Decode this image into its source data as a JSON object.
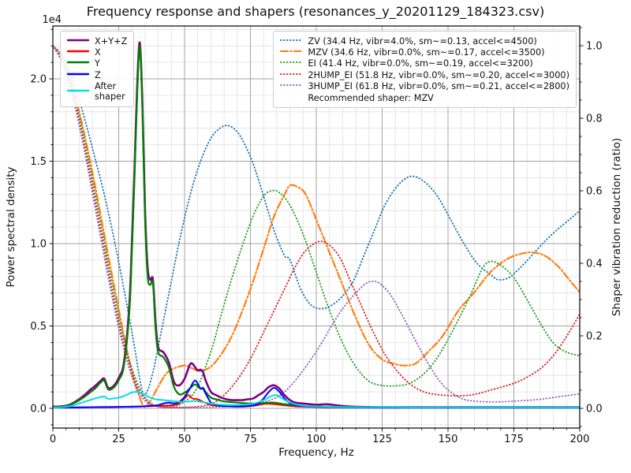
{
  "title": "Frequency response and shapers (resonances_y_20201129_184323.csv)",
  "axes": {
    "x": {
      "label": "Frequency, Hz",
      "min": 0,
      "max": 200,
      "major_ticks": [
        0,
        25,
        50,
        75,
        100,
        125,
        150,
        175,
        200
      ],
      "minor_step": 5
    },
    "y_left": {
      "label": "Power spectral density",
      "offset_text": "1e4",
      "major_ticks": [
        0.0,
        0.5,
        1.0,
        1.5,
        2.0
      ],
      "minor_step": 0.1,
      "scale": 10000
    },
    "y_right": {
      "label": "Shaper vibration reduction (ratio)",
      "major_ticks": [
        0.0,
        0.2,
        0.4,
        0.6,
        0.8,
        1.0
      ],
      "minor_step": 0.05
    }
  },
  "legend_psd": {
    "items": [
      {
        "label": "X+Y+Z",
        "color": "#800080",
        "style": "solid"
      },
      {
        "label": "X",
        "color": "#ff0000",
        "style": "solid"
      },
      {
        "label": "Y",
        "color": "#008000",
        "style": "solid"
      },
      {
        "label": "Z",
        "color": "#0000ff",
        "style": "solid"
      },
      {
        "label": "After\nshaper",
        "color": "#00e0e0",
        "style": "solid"
      }
    ]
  },
  "legend_shapers": {
    "items": [
      {
        "label": "ZV (34.4 Hz, vibr=4.0%, sm~=0.13, accel<=4500)",
        "color": "#1f77b4",
        "style": "dotted"
      },
      {
        "label": "MZV (34.6 Hz, vibr=0.0%, sm~=0.17, accel<=3500)",
        "color": "#ff7f0e",
        "style": "dashdot"
      },
      {
        "label": "EI (41.4 Hz, vibr=0.0%, sm~=0.19, accel<=3200)",
        "color": "#2ca02c",
        "style": "dotted"
      },
      {
        "label": "2HUMP_EI (51.8 Hz, vibr=0.0%, sm~=0.20, accel<=3000)",
        "color": "#d62728",
        "style": "dotted"
      },
      {
        "label": "3HUMP_EI (61.8 Hz, vibr=0.0%, sm~=0.21, accel<=2800)",
        "color": "#9467bd",
        "style": "dotted"
      },
      {
        "label": "Recommended shaper: MZV",
        "color": null,
        "style": "none"
      }
    ]
  },
  "chart_data": {
    "type": "line",
    "title": "Frequency response and shapers (resonances_y_20201129_184323.csv)",
    "xlabel": "Frequency, Hz",
    "ylabel_left": "Power spectral density",
    "ylabel_right": "Shaper vibration reduction (ratio)",
    "x_range": [
      0,
      200
    ],
    "y_left_range_1e4": [
      0,
      2.32
    ],
    "y_right_range": [
      0,
      1.0
    ],
    "grid": "both",
    "recommended_shaper": "MZV",
    "psd_series": [
      {
        "name": "X+Y+Z",
        "color": "#800080",
        "width": 2.6,
        "axis": "left",
        "unit": "1e4",
        "x": [
          0,
          3,
          6,
          9,
          12,
          14,
          16,
          18,
          19.5,
          21,
          23,
          25,
          27,
          29,
          30,
          31,
          32,
          33,
          34,
          35,
          36,
          37,
          38,
          39,
          40,
          42,
          44,
          46,
          48,
          50,
          52,
          53,
          54,
          55,
          56,
          57,
          58,
          60,
          62,
          64,
          66,
          68,
          70,
          72,
          74,
          76,
          78,
          80,
          82,
          84,
          86,
          88,
          90,
          92,
          96,
          100,
          104,
          108,
          112,
          120,
          130,
          140,
          160,
          180,
          200
        ],
        "y": [
          0.01,
          0.012,
          0.02,
          0.045,
          0.08,
          0.11,
          0.135,
          0.165,
          0.18,
          0.125,
          0.135,
          0.185,
          0.28,
          0.62,
          1.0,
          1.45,
          1.95,
          2.22,
          1.85,
          1.2,
          0.85,
          0.78,
          0.78,
          0.52,
          0.37,
          0.34,
          0.28,
          0.16,
          0.14,
          0.18,
          0.265,
          0.27,
          0.25,
          0.23,
          0.235,
          0.22,
          0.17,
          0.1,
          0.08,
          0.065,
          0.055,
          0.05,
          0.05,
          0.05,
          0.055,
          0.06,
          0.08,
          0.1,
          0.13,
          0.14,
          0.12,
          0.08,
          0.05,
          0.035,
          0.028,
          0.022,
          0.025,
          0.018,
          0.012,
          0.008,
          0.007,
          0.007,
          0.007,
          0.007,
          0.007
        ]
      },
      {
        "name": "X",
        "color": "#ff0000",
        "width": 2,
        "axis": "left",
        "unit": "1e4",
        "x": [
          0,
          10,
          20,
          30,
          35,
          40,
          44,
          46,
          48,
          50,
          51.5,
          53,
          55,
          57,
          60,
          63,
          66,
          70,
          74,
          78,
          81,
          84,
          88,
          92,
          96,
          100,
          110,
          120,
          140,
          160,
          180,
          200
        ],
        "y": [
          0.005,
          0.006,
          0.008,
          0.01,
          0.012,
          0.015,
          0.018,
          0.02,
          0.03,
          0.06,
          0.08,
          0.06,
          0.055,
          0.04,
          0.02,
          0.015,
          0.012,
          0.01,
          0.012,
          0.02,
          0.028,
          0.025,
          0.018,
          0.012,
          0.01,
          0.008,
          0.006,
          0.005,
          0.004,
          0.004,
          0.004,
          0.004
        ]
      },
      {
        "name": "Y",
        "color": "#008000",
        "width": 2.2,
        "axis": "left",
        "unit": "1e4",
        "x": [
          0,
          3,
          6,
          9,
          12,
          14,
          16,
          18,
          19.5,
          21,
          23,
          25,
          27,
          29,
          30,
          31,
          32,
          33,
          34,
          35,
          36,
          37,
          38,
          39,
          40,
          42,
          44,
          46,
          48,
          50,
          52,
          54,
          56,
          57,
          58,
          60,
          62,
          64,
          66,
          70,
          74,
          78,
          82,
          84,
          86,
          88,
          92,
          96,
          100,
          110,
          120,
          140,
          160,
          180,
          200
        ],
        "y": [
          0.008,
          0.01,
          0.018,
          0.04,
          0.07,
          0.095,
          0.12,
          0.155,
          0.168,
          0.115,
          0.125,
          0.17,
          0.26,
          0.58,
          0.95,
          1.4,
          1.9,
          2.2,
          1.82,
          1.15,
          0.8,
          0.75,
          0.76,
          0.48,
          0.34,
          0.31,
          0.25,
          0.13,
          0.085,
          0.095,
          0.12,
          0.145,
          0.12,
          0.125,
          0.1,
          0.065,
          0.055,
          0.045,
          0.04,
          0.035,
          0.03,
          0.03,
          0.035,
          0.035,
          0.03,
          0.025,
          0.018,
          0.014,
          0.012,
          0.008,
          0.006,
          0.005,
          0.005,
          0.005,
          0.005
        ]
      },
      {
        "name": "Z",
        "color": "#0000ff",
        "width": 2,
        "axis": "left",
        "unit": "1e4",
        "x": [
          0,
          10,
          20,
          30,
          36,
          40,
          42,
          44,
          46,
          48,
          50,
          52,
          53,
          54,
          55,
          56,
          57,
          58,
          60,
          62,
          64,
          68,
          72,
          76,
          78,
          80,
          82,
          84,
          86,
          88,
          90,
          92,
          96,
          100,
          110,
          120,
          140,
          160,
          180,
          200
        ],
        "y": [
          0.005,
          0.006,
          0.008,
          0.01,
          0.014,
          0.02,
          0.03,
          0.035,
          0.03,
          0.04,
          0.07,
          0.12,
          0.15,
          0.17,
          0.15,
          0.12,
          0.12,
          0.09,
          0.035,
          0.02,
          0.015,
          0.012,
          0.012,
          0.018,
          0.03,
          0.06,
          0.1,
          0.125,
          0.1,
          0.06,
          0.03,
          0.02,
          0.012,
          0.01,
          0.006,
          0.005,
          0.004,
          0.004,
          0.004,
          0.004
        ]
      },
      {
        "name": "After shaper",
        "color": "#00e0e0",
        "width": 2,
        "axis": "left",
        "unit": "1e4",
        "x": [
          0,
          4,
          7,
          10,
          13,
          16,
          18,
          19.5,
          21,
          23,
          25,
          27,
          29,
          31,
          33,
          35,
          37,
          39,
          42,
          45,
          48,
          50,
          52,
          54,
          56,
          58,
          60,
          64,
          68,
          72,
          76,
          80,
          83,
          85,
          87,
          90,
          93,
          96,
          100,
          110,
          120,
          140,
          160,
          180,
          200
        ],
        "y": [
          0.005,
          0.008,
          0.015,
          0.03,
          0.045,
          0.06,
          0.068,
          0.072,
          0.058,
          0.06,
          0.065,
          0.075,
          0.09,
          0.1,
          0.095,
          0.08,
          0.065,
          0.055,
          0.05,
          0.045,
          0.04,
          0.04,
          0.042,
          0.045,
          0.04,
          0.035,
          0.03,
          0.022,
          0.02,
          0.022,
          0.028,
          0.05,
          0.075,
          0.08,
          0.06,
          0.035,
          0.022,
          0.015,
          0.012,
          0.008,
          0.007,
          0.006,
          0.006,
          0.006,
          0.006
        ]
      }
    ],
    "shaper_series": [
      {
        "name": "ZV",
        "color": "#1f77b4",
        "style": "dotted",
        "axis": "right",
        "x": [
          0,
          4,
          8,
          12,
          16,
          20,
          24,
          28,
          31,
          33,
          34.4,
          36,
          38,
          40,
          44,
          48,
          52,
          56,
          60,
          63,
          66,
          69,
          72,
          76,
          80,
          84,
          88,
          90,
          94,
          98,
          102,
          106,
          110,
          114,
          118,
          122,
          126,
          131,
          136,
          141,
          146,
          151,
          156,
          161,
          166,
          169,
          173,
          177,
          181,
          186,
          191,
          196,
          200
        ],
        "y": [
          1.0,
          0.97,
          0.9,
          0.8,
          0.69,
          0.575,
          0.44,
          0.29,
          0.17,
          0.08,
          0.04,
          0.05,
          0.1,
          0.17,
          0.315,
          0.46,
          0.585,
          0.68,
          0.745,
          0.77,
          0.78,
          0.77,
          0.74,
          0.675,
          0.585,
          0.49,
          0.42,
          0.41,
          0.33,
          0.285,
          0.275,
          0.285,
          0.31,
          0.35,
          0.42,
          0.49,
          0.56,
          0.615,
          0.64,
          0.625,
          0.585,
          0.52,
          0.455,
          0.4,
          0.37,
          0.355,
          0.36,
          0.385,
          0.415,
          0.455,
          0.49,
          0.52,
          0.545
        ]
      },
      {
        "name": "MZV",
        "color": "#ff7f0e",
        "style": "dashdot",
        "axis": "right",
        "x": [
          0,
          4,
          8,
          12,
          16,
          20,
          24,
          27,
          30,
          32,
          34.6,
          37,
          40,
          43,
          46,
          50,
          53,
          56,
          60,
          64,
          68,
          72,
          76,
          80,
          84,
          88,
          90,
          93,
          96,
          100,
          105,
          110,
          115,
          120,
          125,
          130,
          134,
          138,
          143,
          148,
          154,
          160,
          166,
          172,
          177,
          182,
          187,
          192,
          196,
          200
        ],
        "y": [
          1.0,
          0.96,
          0.875,
          0.755,
          0.615,
          0.46,
          0.31,
          0.2,
          0.1,
          0.05,
          0.005,
          0.02,
          0.06,
          0.095,
          0.11,
          0.118,
          0.11,
          0.103,
          0.115,
          0.15,
          0.2,
          0.27,
          0.35,
          0.44,
          0.53,
          0.59,
          0.615,
          0.61,
          0.59,
          0.52,
          0.43,
          0.34,
          0.25,
          0.175,
          0.135,
          0.122,
          0.118,
          0.125,
          0.16,
          0.2,
          0.27,
          0.32,
          0.375,
          0.41,
          0.425,
          0.43,
          0.42,
          0.39,
          0.355,
          0.32
        ]
      },
      {
        "name": "EI",
        "color": "#2ca02c",
        "style": "dotted",
        "axis": "right",
        "x": [
          0,
          4,
          8,
          12,
          16,
          20,
          24,
          28,
          31,
          34,
          37,
          40,
          44,
          48,
          52,
          55,
          58,
          61,
          64,
          68,
          72,
          76,
          80,
          83,
          86,
          90,
          95,
          100,
          105,
          110,
          115,
          120,
          125,
          130,
          135,
          140,
          145,
          150,
          155,
          159,
          163,
          166,
          170,
          175,
          180,
          185,
          190,
          195,
          200
        ],
        "y": [
          1.0,
          0.955,
          0.865,
          0.74,
          0.595,
          0.44,
          0.29,
          0.16,
          0.09,
          0.04,
          0.015,
          0.005,
          0.005,
          0.01,
          0.03,
          0.06,
          0.115,
          0.18,
          0.26,
          0.36,
          0.45,
          0.53,
          0.585,
          0.6,
          0.595,
          0.56,
          0.48,
          0.375,
          0.27,
          0.18,
          0.115,
          0.075,
          0.063,
          0.062,
          0.068,
          0.09,
          0.13,
          0.19,
          0.26,
          0.32,
          0.385,
          0.405,
          0.395,
          0.36,
          0.3,
          0.235,
          0.18,
          0.155,
          0.145
        ]
      },
      {
        "name": "2HUMP_EI",
        "color": "#d62728",
        "style": "dotted",
        "axis": "right",
        "x": [
          0,
          4,
          8,
          12,
          16,
          20,
          24,
          28,
          32,
          36,
          40,
          45,
          50,
          55,
          60,
          64,
          68,
          72,
          76,
          80,
          84,
          88,
          92,
          96,
          101,
          105,
          109,
          113,
          117,
          121,
          126,
          131,
          136,
          141,
          146,
          151,
          156,
          161,
          166,
          171,
          176,
          181,
          186,
          191,
          196,
          200
        ],
        "y": [
          1.0,
          0.95,
          0.855,
          0.725,
          0.575,
          0.42,
          0.27,
          0.15,
          0.06,
          0.02,
          0.005,
          0.003,
          0.003,
          0.005,
          0.012,
          0.03,
          0.06,
          0.1,
          0.15,
          0.21,
          0.27,
          0.33,
          0.39,
          0.435,
          0.46,
          0.45,
          0.415,
          0.35,
          0.285,
          0.22,
          0.15,
          0.1,
          0.065,
          0.045,
          0.038,
          0.035,
          0.035,
          0.04,
          0.05,
          0.06,
          0.072,
          0.09,
          0.115,
          0.155,
          0.21,
          0.26
        ]
      },
      {
        "name": "3HUMP_EI",
        "color": "#9467bd",
        "style": "dotted",
        "axis": "right",
        "x": [
          0,
          4,
          8,
          12,
          16,
          20,
          24,
          28,
          32,
          36,
          40,
          46,
          52,
          58,
          64,
          70,
          76,
          82,
          86,
          90,
          94,
          98,
          102,
          106,
          110,
          114,
          118,
          121,
          124,
          128,
          132,
          136,
          140,
          144,
          148,
          152,
          156,
          160,
          165,
          170,
          175,
          180,
          185,
          190,
          195,
          200
        ],
        "y": [
          1.0,
          0.945,
          0.845,
          0.71,
          0.555,
          0.4,
          0.255,
          0.135,
          0.05,
          0.015,
          0.005,
          0.002,
          0.002,
          0.003,
          0.004,
          0.007,
          0.012,
          0.022,
          0.035,
          0.06,
          0.095,
          0.135,
          0.18,
          0.23,
          0.275,
          0.31,
          0.34,
          0.35,
          0.345,
          0.315,
          0.265,
          0.21,
          0.155,
          0.105,
          0.065,
          0.04,
          0.025,
          0.02,
          0.018,
          0.018,
          0.02,
          0.022,
          0.025,
          0.03,
          0.035,
          0.04
        ]
      }
    ]
  }
}
